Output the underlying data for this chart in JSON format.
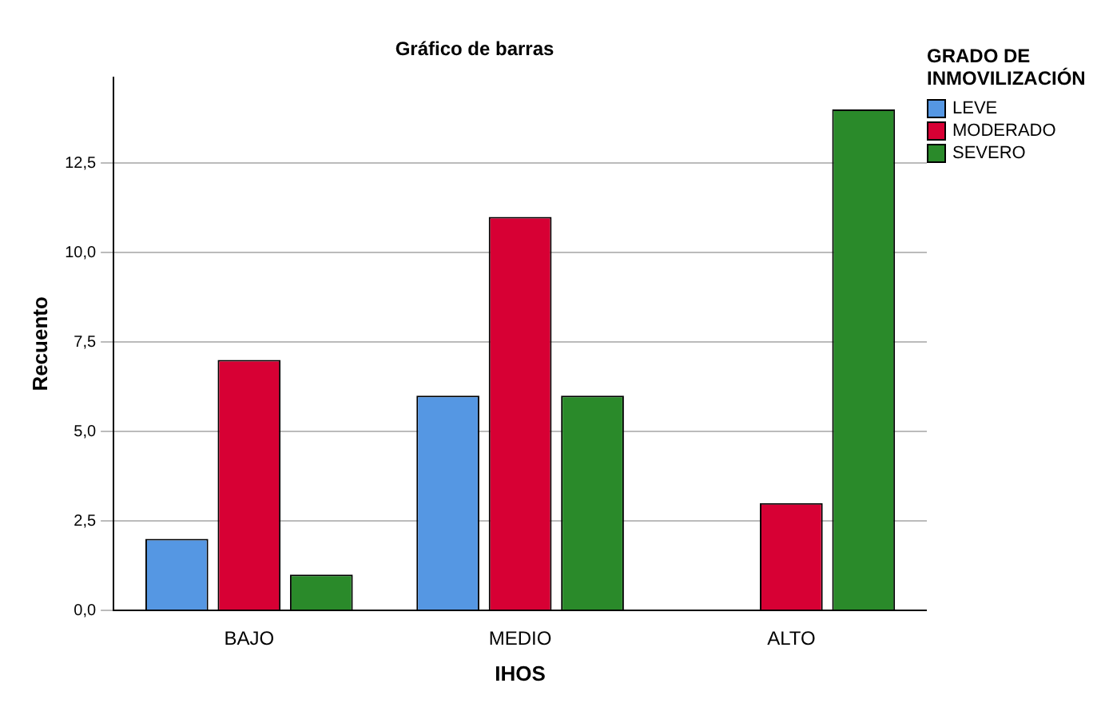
{
  "chart_data": {
    "type": "bar",
    "title": "Gráfico de barras",
    "xlabel": "IHOS",
    "ylabel": "Recuento",
    "legend_title": "GRADO DE INMOVILIZACIÓN",
    "categories": [
      "BAJO",
      "MEDIO",
      "ALTO"
    ],
    "series": [
      {
        "name": "LEVE",
        "color": "#5597e3",
        "values": [
          2,
          6,
          0
        ]
      },
      {
        "name": "MODERADO",
        "color": "#d70034",
        "values": [
          7,
          11,
          3
        ]
      },
      {
        "name": "SEVERO",
        "color": "#2a8a2a",
        "values": [
          1,
          6,
          14
        ]
      }
    ],
    "ylim": [
      0,
      14.9
    ],
    "yticks": [
      {
        "value": 0,
        "label": "0,0"
      },
      {
        "value": 2.5,
        "label": "2,5"
      },
      {
        "value": 5,
        "label": "5,0"
      },
      {
        "value": 7.5,
        "label": "7,5"
      },
      {
        "value": 10,
        "label": "10,0"
      },
      {
        "value": 12.5,
        "label": "12,5"
      }
    ],
    "grid": "y",
    "legend": "top right"
  }
}
